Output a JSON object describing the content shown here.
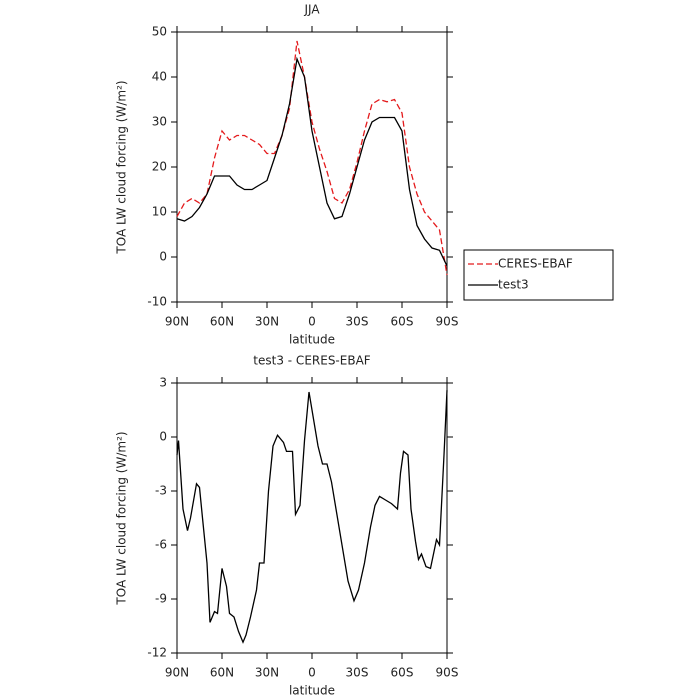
{
  "chart_data": [
    {
      "type": "line",
      "title": "JJA",
      "xlabel": "latitude",
      "ylabel": "TOA LW cloud forcing (W/m²)",
      "x": [
        90,
        85,
        80,
        75,
        70,
        65,
        60,
        55,
        50,
        45,
        40,
        35,
        30,
        25,
        20,
        15,
        10,
        5,
        0,
        -5,
        -10,
        -15,
        -20,
        -25,
        -30,
        -35,
        -40,
        -45,
        -50,
        -55,
        -60,
        -65,
        -70,
        -75,
        -80,
        -85,
        -90
      ],
      "series": [
        {
          "name": "CERES-EBAF",
          "color": "#e41a1c",
          "dash": true,
          "values": [
            9,
            12,
            13,
            12,
            14,
            22,
            28,
            26,
            27,
            27,
            26,
            25,
            23,
            23,
            27,
            33,
            48,
            40,
            30,
            24,
            19,
            13,
            12,
            15,
            21,
            28,
            34,
            35,
            34.5,
            35,
            32,
            20,
            14,
            10,
            8,
            6,
            -4
          ]
        },
        {
          "name": "test3",
          "color": "#000000",
          "dash": false,
          "values": [
            8.5,
            8,
            9,
            11,
            14,
            18,
            18,
            18,
            16,
            15,
            15,
            16,
            17,
            22,
            27,
            34,
            44,
            40,
            28,
            20,
            12,
            8.5,
            9,
            14,
            20,
            26,
            30,
            31,
            31,
            31,
            28,
            15,
            7,
            4,
            2,
            1.5,
            -2
          ]
        }
      ],
      "xlim": [
        90,
        -90
      ],
      "xticks": [
        {
          "value": 90,
          "label": "90N"
        },
        {
          "value": 60,
          "label": "60N"
        },
        {
          "value": 30,
          "label": "30N"
        },
        0,
        {
          "value": -30,
          "label": "30S"
        },
        {
          "value": -60,
          "label": "60S"
        },
        {
          "value": -90,
          "label": "90S"
        }
      ],
      "ylim": [
        -10,
        50
      ],
      "yticks": [
        -10,
        0,
        10,
        20,
        30,
        40,
        50
      ],
      "legend": "right"
    },
    {
      "type": "line",
      "title": "test3 - CERES-EBAF",
      "xlabel": "latitude",
      "ylabel": "TOA LW cloud forcing (W/m²)",
      "x": [
        90,
        89,
        86,
        83,
        81,
        77,
        75,
        73,
        70,
        68,
        65,
        63,
        60,
        57,
        55,
        52,
        49,
        46,
        44,
        41,
        37,
        35,
        32,
        29,
        26,
        23,
        19,
        17,
        13,
        11,
        8,
        5,
        2,
        -1,
        -4,
        -7,
        -10,
        -13,
        -16,
        -20,
        -24,
        -28,
        -31,
        -35,
        -39,
        -42,
        -45,
        -49,
        -53,
        -57,
        -59,
        -61,
        -64,
        -66,
        -69,
        -71,
        -73,
        -76,
        -79,
        -83,
        -85,
        -88,
        -90
      ],
      "values": [
        -1,
        -0.2,
        -4,
        -5.2,
        -4.5,
        -2.6,
        -2.8,
        -4.5,
        -7,
        -10.3,
        -9.7,
        -9.8,
        -7.3,
        -8.3,
        -9.8,
        -10,
        -10.8,
        -11.4,
        -11,
        -10,
        -8.5,
        -7,
        -7,
        -3,
        -0.5,
        0.1,
        -0.3,
        -0.8,
        -0.8,
        -4.3,
        -3.8,
        -0.2,
        2.5,
        1,
        -0.5,
        -1.5,
        -1.5,
        -2.5,
        -4,
        -6,
        -8,
        -9.1,
        -8.5,
        -7,
        -5,
        -3.8,
        -3.3,
        -3.5,
        -3.7,
        -4,
        -2,
        -0.8,
        -1,
        -4,
        -5.8,
        -6.8,
        -6.5,
        -7.2,
        -7.3,
        -5.7,
        -6,
        -1,
        2.6
      ],
      "color": "#000000",
      "xlim": [
        90,
        -90
      ],
      "xticks": [
        {
          "value": 90,
          "label": "90N"
        },
        {
          "value": 60,
          "label": "60N"
        },
        {
          "value": 30,
          "label": "30N"
        },
        0,
        {
          "value": -30,
          "label": "30S"
        },
        {
          "value": -60,
          "label": "60S"
        },
        {
          "value": -90,
          "label": "90S"
        }
      ],
      "ylim": [
        -12,
        3
      ],
      "yticks": [
        -12,
        -9,
        -6,
        -3,
        0,
        3
      ]
    }
  ]
}
